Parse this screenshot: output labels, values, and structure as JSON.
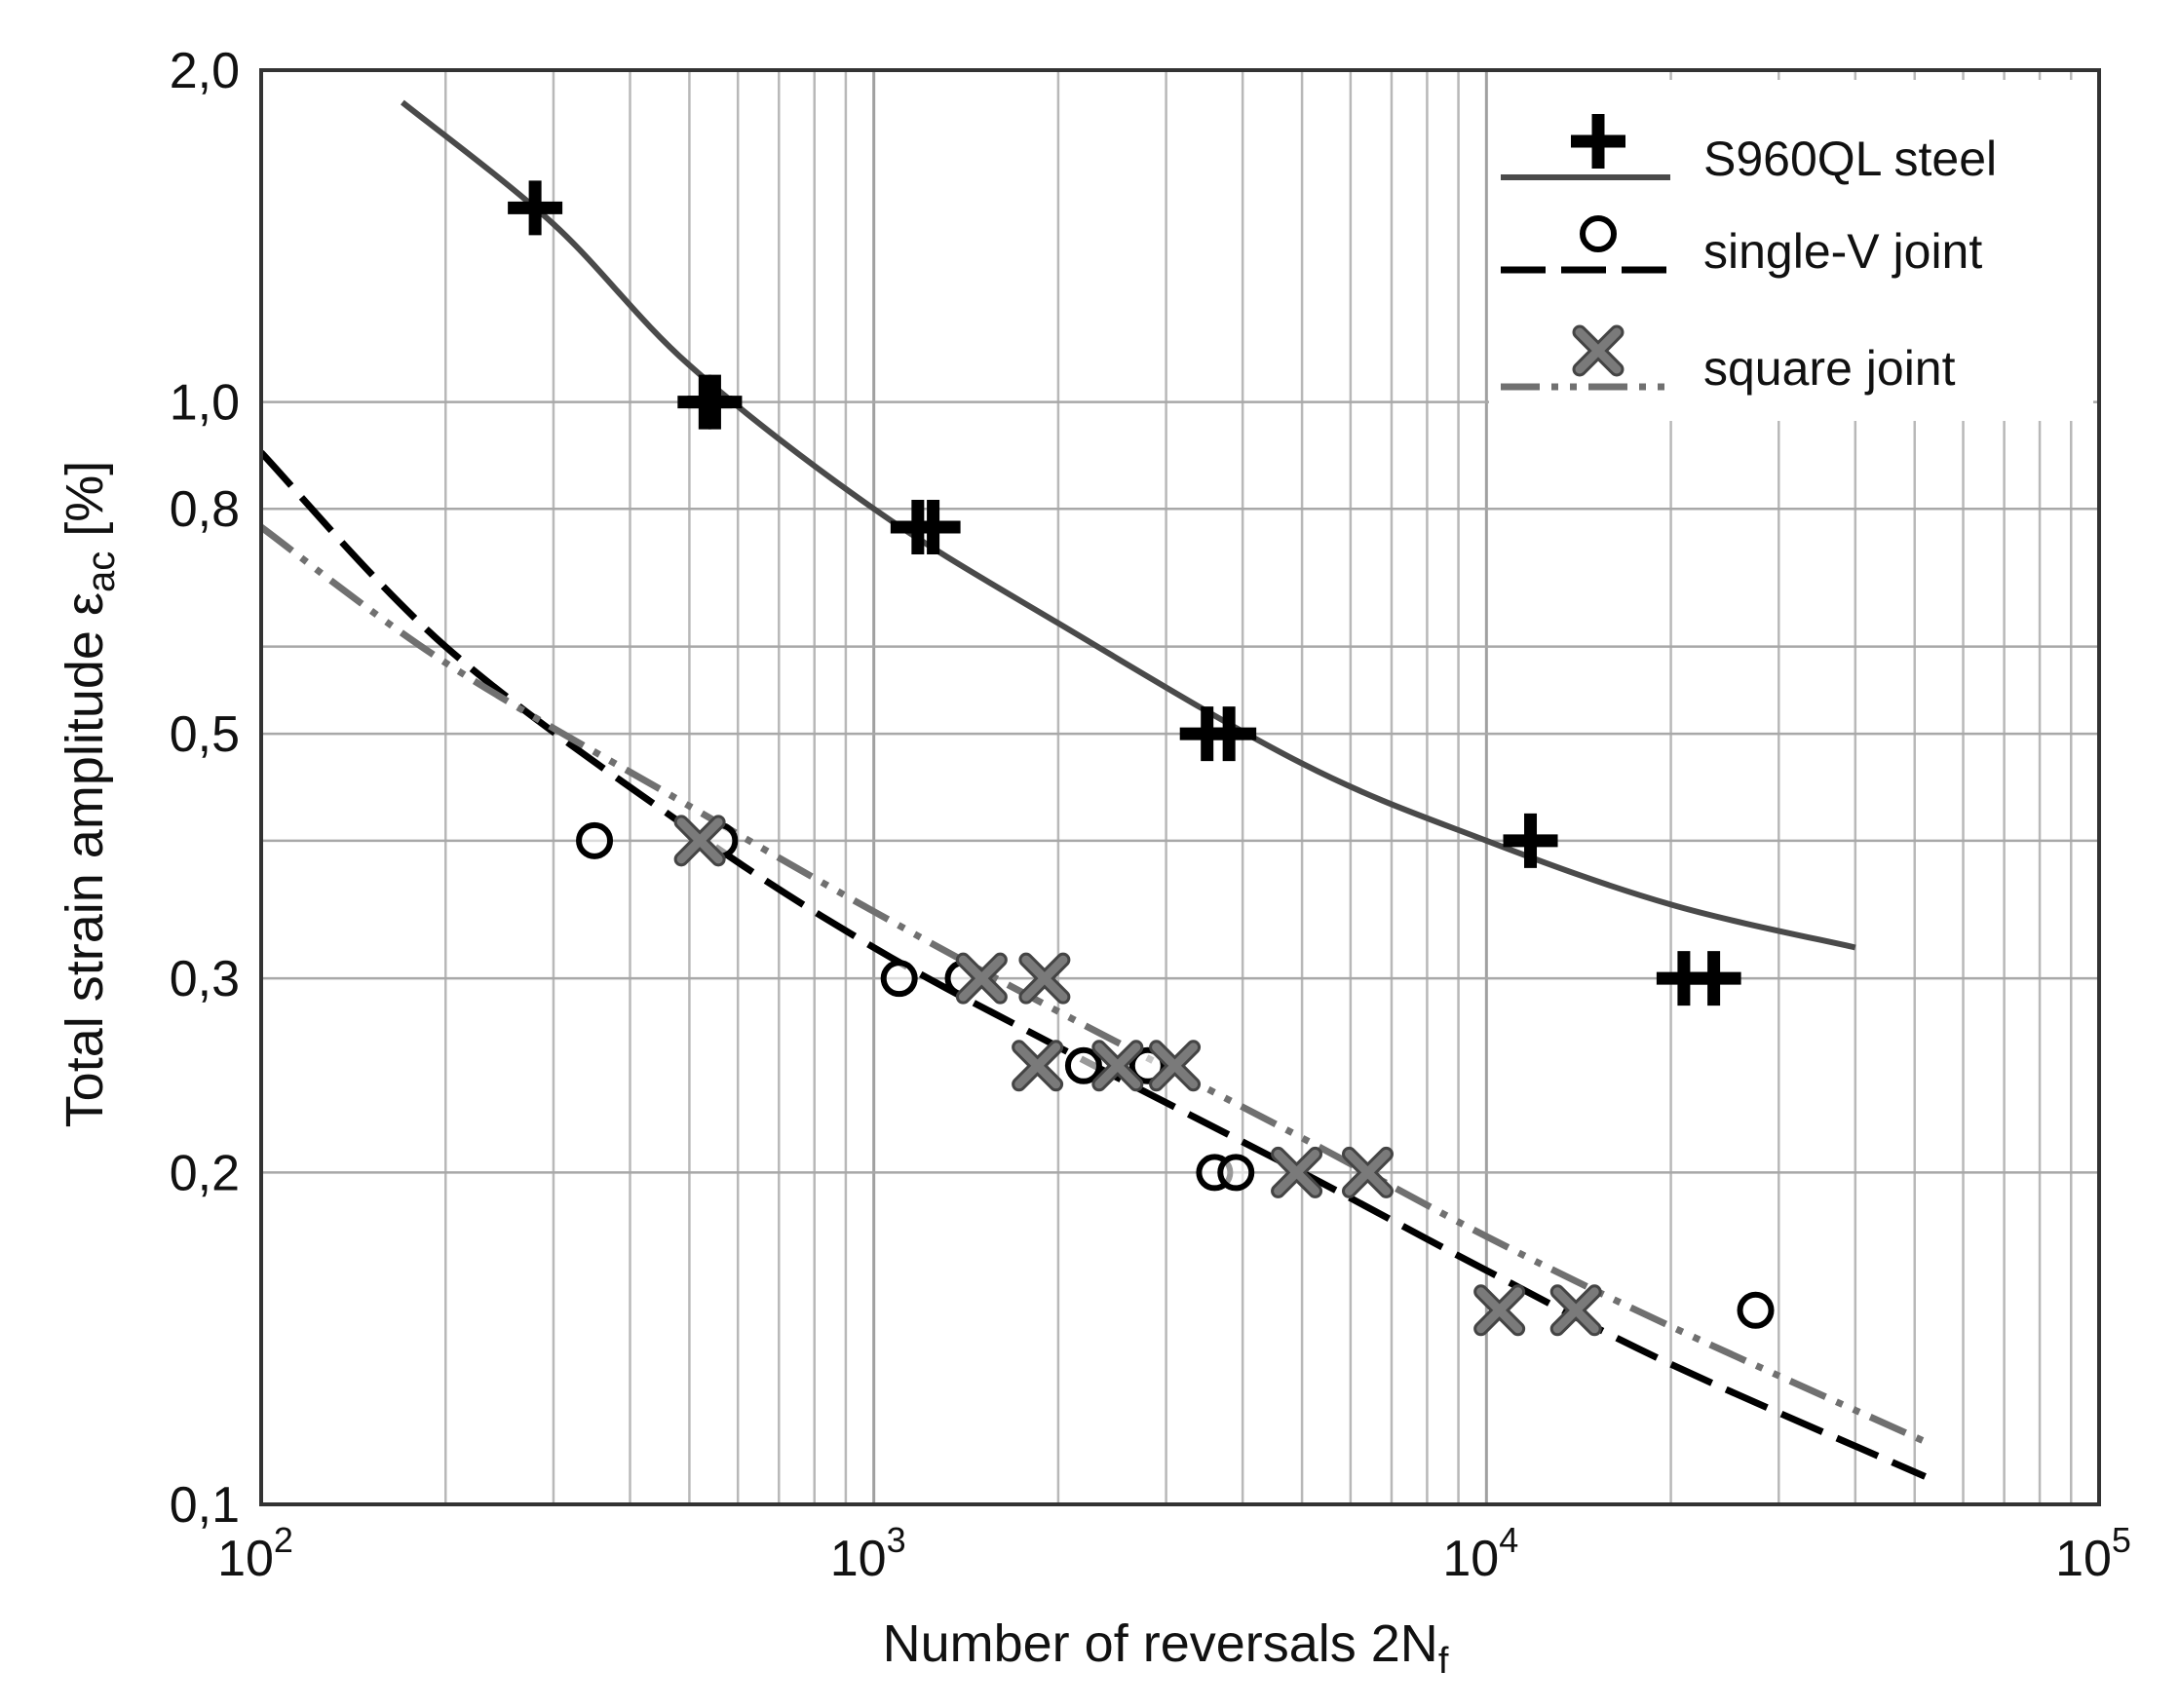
{
  "chart_data": {
    "type": "scatter",
    "xlabel": "Number of reversals 2N",
    "xlabel_sub": "f",
    "ylabel": "Total strain amplitude ε",
    "ylabel_sub": "ac",
    "ylabel_unit": " [%]",
    "x_scale": "log",
    "y_scale": "log",
    "xlim": [
      100,
      100000
    ],
    "ylim": [
      0.1,
      2.0
    ],
    "grid": true,
    "legend_position": "top-right",
    "x_ticks": [
      {
        "value": 100,
        "base": "10",
        "exp": "2"
      },
      {
        "value": 1000,
        "base": "10",
        "exp": "3"
      },
      {
        "value": 10000,
        "base": "10",
        "exp": "4"
      },
      {
        "value": 100000,
        "base": "10",
        "exp": "5"
      }
    ],
    "y_ticks": [
      {
        "value": 0.1,
        "label": "0,1"
      },
      {
        "value": 0.2,
        "label": "0,2"
      },
      {
        "value": 0.3,
        "label": "0,3"
      },
      {
        "value": 0.5,
        "label": "0,5"
      },
      {
        "value": 0.8,
        "label": "0,8"
      },
      {
        "value": 1.0,
        "label": "1,0"
      },
      {
        "value": 2.0,
        "label": "2,0"
      }
    ],
    "y_grid_values": [
      0.1,
      0.2,
      0.3,
      0.4,
      0.5,
      0.6,
      0.8,
      1.0,
      2.0
    ],
    "series": [
      {
        "name": "S960QL steel",
        "marker": "plus",
        "line": "solid",
        "color": "#4a4a4a",
        "marker_color": "#000000",
        "points": [
          [
            280,
            1.5
          ],
          [
            530,
            1.0
          ],
          [
            550,
            1.0
          ],
          [
            1180,
            0.77
          ],
          [
            1250,
            0.77
          ],
          [
            3500,
            0.5
          ],
          [
            3800,
            0.5
          ],
          [
            11800,
            0.4
          ],
          [
            21000,
            0.3
          ],
          [
            23500,
            0.3
          ]
        ],
        "fit": [
          [
            170,
            1.87
          ],
          [
            300,
            1.45
          ],
          [
            500,
            1.08
          ],
          [
            1000,
            0.8
          ],
          [
            2000,
            0.63
          ],
          [
            5000,
            0.47
          ],
          [
            10000,
            0.4
          ],
          [
            20000,
            0.35
          ],
          [
            40000,
            0.32
          ]
        ]
      },
      {
        "name": "single-V joint",
        "marker": "circle",
        "line": "dashed",
        "color": "#000000",
        "marker_color": "#000000",
        "points": [
          [
            350,
            0.4
          ],
          [
            560,
            0.4
          ],
          [
            1100,
            0.3
          ],
          [
            1400,
            0.3
          ],
          [
            2200,
            0.25
          ],
          [
            2800,
            0.25
          ],
          [
            3600,
            0.2
          ],
          [
            3900,
            0.2
          ],
          [
            27500,
            0.15
          ]
        ],
        "fit": [
          [
            100,
            0.9
          ],
          [
            200,
            0.6
          ],
          [
            500,
            0.41
          ],
          [
            1000,
            0.32
          ],
          [
            2000,
            0.26
          ],
          [
            5000,
            0.2
          ],
          [
            10000,
            0.163
          ],
          [
            20000,
            0.134
          ],
          [
            52000,
            0.106
          ]
        ]
      },
      {
        "name": "square joint",
        "marker": "x",
        "line": "dashdot",
        "color": "#707070",
        "marker_color": "#7a7a7a",
        "points": [
          [
            520,
            0.4
          ],
          [
            1500,
            0.3
          ],
          [
            1900,
            0.3
          ],
          [
            1850,
            0.25
          ],
          [
            2500,
            0.25
          ],
          [
            3100,
            0.25
          ],
          [
            4900,
            0.2
          ],
          [
            6400,
            0.2
          ],
          [
            10500,
            0.15
          ],
          [
            14000,
            0.15
          ]
        ],
        "fit": [
          [
            100,
            0.77
          ],
          [
            200,
            0.58
          ],
          [
            500,
            0.43
          ],
          [
            1000,
            0.345
          ],
          [
            2000,
            0.28
          ],
          [
            5000,
            0.215
          ],
          [
            10000,
            0.175
          ],
          [
            20000,
            0.145
          ],
          [
            52000,
            0.114
          ]
        ]
      }
    ]
  }
}
